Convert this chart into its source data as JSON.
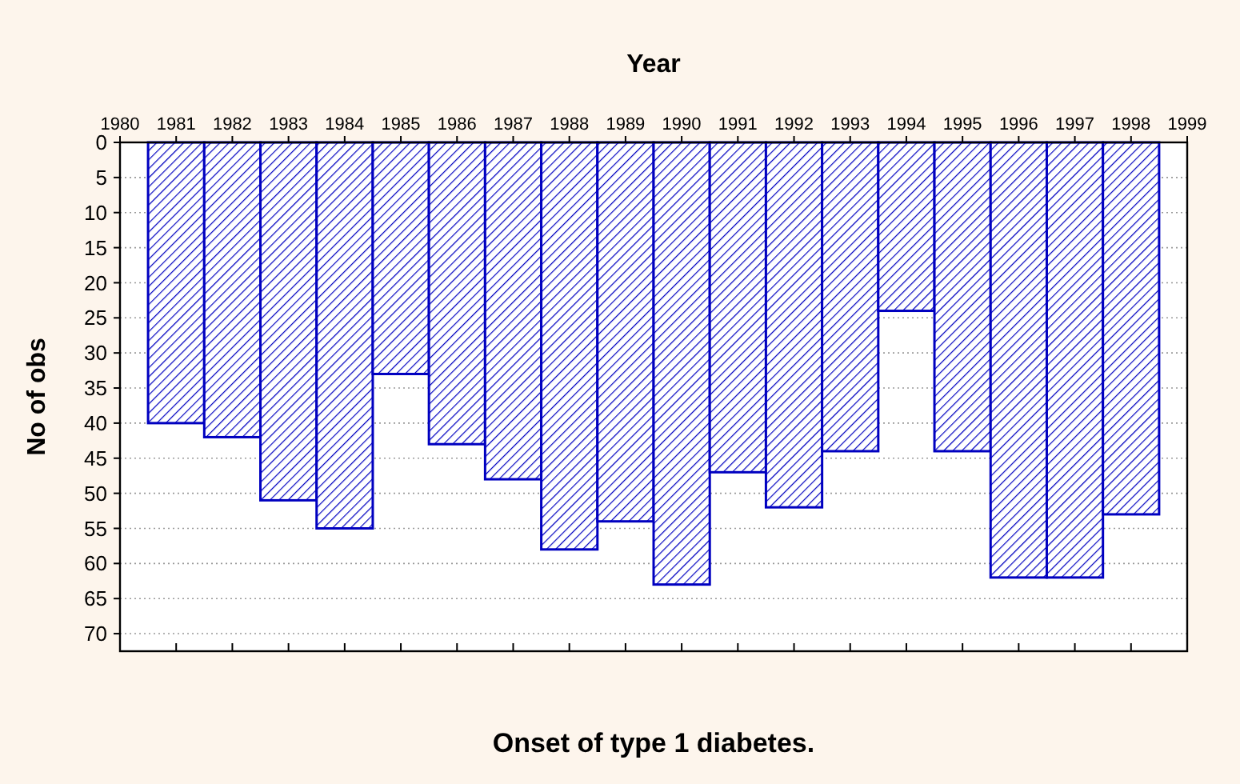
{
  "chart_data": {
    "type": "histogram",
    "title": "Onset of type 1 diabetes.",
    "xlabel": "Year",
    "ylabel": "No of obs",
    "bins": [
      1980.5,
      1981.5,
      1982.5,
      1983.5,
      1984.5,
      1985.5,
      1986.5,
      1987.5,
      1988.5,
      1989.5,
      1990.5,
      1991.5,
      1992.5,
      1993.5,
      1994.5,
      1995.5,
      1996.5,
      1997.5,
      1998.5
    ],
    "values": [
      40,
      42,
      51,
      55,
      33,
      43,
      48,
      58,
      54,
      63,
      47,
      52,
      44,
      24,
      44,
      62,
      62,
      53
    ],
    "color": "#0000c0",
    "xlim": [
      1980,
      1999
    ],
    "xticks": [
      1980,
      1981,
      1982,
      1983,
      1984,
      1985,
      1986,
      1987,
      1988,
      1989,
      1990,
      1991,
      1992,
      1993,
      1994,
      1995,
      1996,
      1997,
      1998,
      1999
    ],
    "ylim": [
      72.5,
      0
    ],
    "yticks": [
      0,
      5,
      10,
      15,
      20,
      25,
      30,
      35,
      40,
      45,
      50,
      55,
      60,
      65,
      70
    ],
    "grid": "y"
  }
}
